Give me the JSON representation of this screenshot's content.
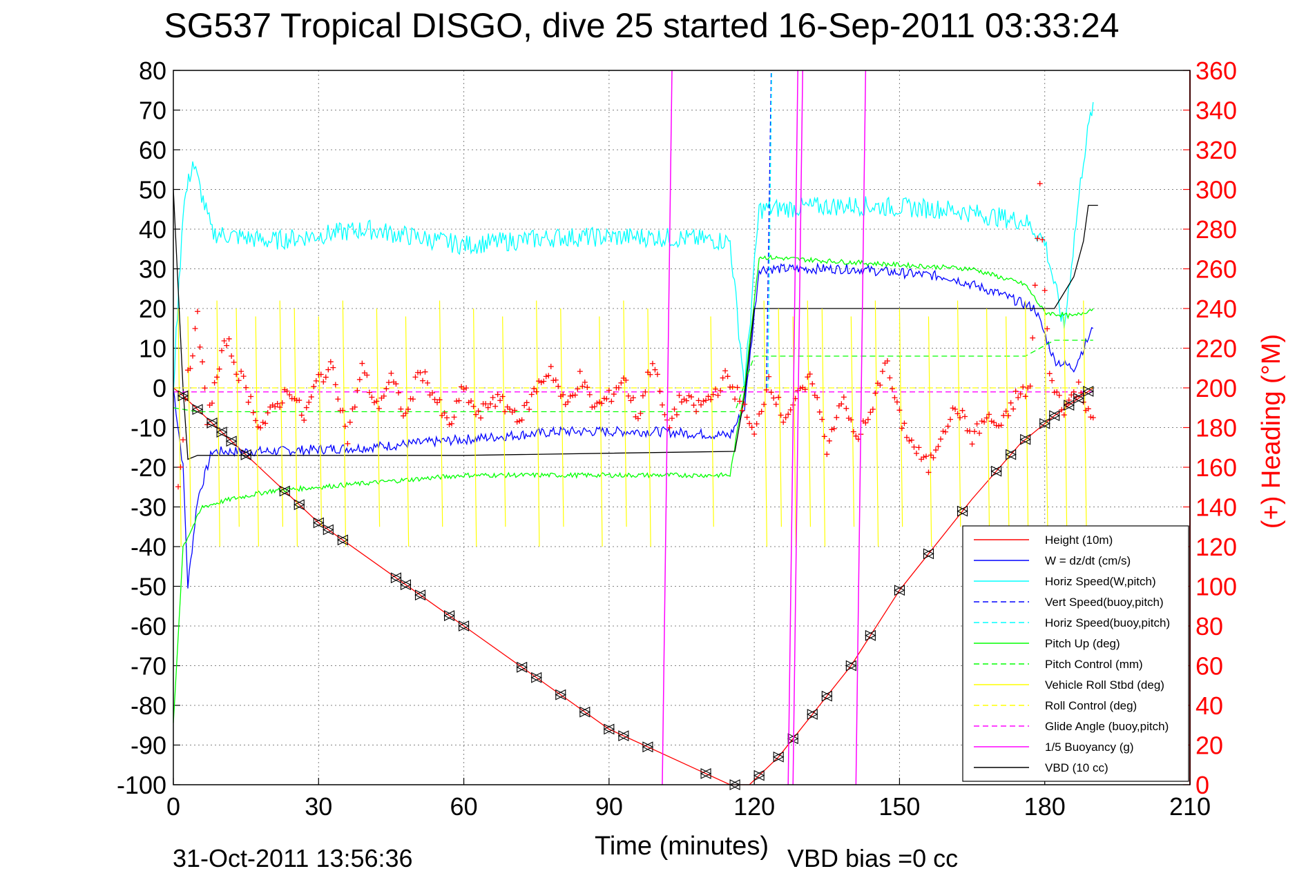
{
  "colors": {
    "height": "#ff0000",
    "w": "#0000ff",
    "horiz_speed": "#00ffff",
    "vert_speed_buoy": "#0000ff",
    "horiz_speed_buoy": "#00ffff",
    "pitch_up": "#00ff00",
    "pitch_control": "#00ff00",
    "roll": "#ffff00",
    "roll_control": "#ffff00",
    "glide_angle": "#ff00ff",
    "buoyancy": "#ff00ff",
    "vbd": "#000000",
    "heading": "#ff0000"
  },
  "chart_data": {
    "type": "line",
    "title": "SG537 Tropical DISGO, dive 25 started 16-Sep-2011 03:33:24",
    "xlabel": "Time (minutes)",
    "ylabel_right": "(+) Heading (°M)",
    "xlim": [
      0,
      210
    ],
    "ylim": [
      -100,
      80
    ],
    "y2lim": [
      0,
      360
    ],
    "xticks": [
      "0",
      "30",
      "60",
      "90",
      "120",
      "150",
      "180",
      "210"
    ],
    "yticks": [
      "80",
      "70",
      "60",
      "50",
      "40",
      "30",
      "20",
      "10",
      "0",
      "-10",
      "-20",
      "-30",
      "-40",
      "-50",
      "-60",
      "-70",
      "-80",
      "-90",
      "-100"
    ],
    "y2ticks": [
      "360",
      "340",
      "320",
      "300",
      "280",
      "260",
      "240",
      "220",
      "200",
      "180",
      "160",
      "140",
      "120",
      "100",
      "80",
      "60",
      "40",
      "20",
      "0"
    ],
    "grid": true,
    "legend_position": "bottom-right",
    "legend": [
      {
        "label": "Height (10m)",
        "style": "solid",
        "color": "#ff0000"
      },
      {
        "label": "W = dz/dt (cm/s)",
        "style": "solid",
        "color": "#0000ff"
      },
      {
        "label": "Horiz Speed(W,pitch)",
        "style": "solid",
        "color": "#00ffff"
      },
      {
        "label": "Vert Speed(buoy,pitch)",
        "style": "dashed",
        "color": "#0000ff"
      },
      {
        "label": "Horiz Speed(buoy,pitch)",
        "style": "dashed",
        "color": "#00ffff"
      },
      {
        "label": "Pitch Up (deg)",
        "style": "solid",
        "color": "#00ff00"
      },
      {
        "label": "Pitch Control (mm)",
        "style": "dashed",
        "color": "#00ff00"
      },
      {
        "label": "Vehicle Roll Stbd (deg)",
        "style": "solid",
        "color": "#ffff00"
      },
      {
        "label": "Roll Control (deg)",
        "style": "dashed",
        "color": "#ffff00"
      },
      {
        "label": "Glide Angle (buoy,pitch)",
        "style": "dashed",
        "color": "#ff00ff"
      },
      {
        "label": "1/5 Buoyancy (g)",
        "style": "solid",
        "color": "#ff00ff"
      },
      {
        "label": "VBD (10 cc)",
        "style": "solid",
        "color": "#000000"
      }
    ],
    "series": [
      {
        "name": "Height (10m)",
        "color": "#ff0000",
        "x": [
          0,
          2,
          30,
          60,
          90,
          115,
          119,
          125,
          140,
          150,
          165,
          175,
          182,
          190
        ],
        "y": [
          0,
          -2,
          -34,
          -60,
          -86,
          -100,
          -100,
          -93,
          -70,
          -51,
          -28,
          -14,
          -7,
          0
        ]
      },
      {
        "name": "W = dz/dt (cm/s)",
        "color": "#0000ff",
        "x": [
          0,
          2,
          3,
          5,
          8,
          12,
          20,
          40,
          60,
          80,
          100,
          115,
          118,
          121,
          140,
          160,
          170,
          178,
          182,
          186,
          190
        ],
        "y": [
          0,
          -20,
          -50,
          -28,
          -16,
          -16,
          -16,
          -15,
          -13,
          -11,
          -11,
          -12,
          -5,
          30,
          30,
          28,
          24,
          20,
          7,
          5,
          15
        ]
      },
      {
        "name": "Horiz Speed(W,pitch)",
        "color": "#00ffff",
        "x": [
          0,
          2,
          4,
          8,
          20,
          40,
          60,
          80,
          100,
          115,
          118,
          121,
          140,
          160,
          176,
          180,
          184,
          188,
          190
        ],
        "y": [
          0,
          45,
          57,
          39,
          37,
          40,
          36,
          38,
          38,
          37,
          0,
          45,
          46,
          45,
          42,
          37,
          15,
          58,
          72
        ]
      },
      {
        "name": "Pitch Up (deg)",
        "color": "#00ff00",
        "x": [
          0,
          2,
          6,
          12,
          20,
          40,
          60,
          80,
          100,
          115,
          118,
          121,
          135,
          165,
          176,
          180,
          186,
          190
        ],
        "y": [
          -85,
          -40,
          -30,
          -28,
          -26,
          -24,
          -22,
          -22,
          -22,
          -22,
          0,
          33,
          32,
          30,
          26,
          19,
          18,
          20
        ]
      },
      {
        "name": "Pitch Control (mm)",
        "color": "#00ff00",
        "dashed": true,
        "x": [
          0,
          5,
          116,
          120,
          176,
          182,
          190
        ],
        "y": [
          -5,
          -6,
          -6,
          8,
          8,
          12,
          12
        ]
      },
      {
        "name": "VBD (10 cc)",
        "color": "#000000",
        "x": [
          0,
          1,
          2,
          3,
          5,
          60,
          116,
          118,
          120,
          172,
          180,
          182,
          184,
          186,
          188,
          189,
          191
        ],
        "y": [
          50,
          25,
          0,
          -18,
          -17,
          -17,
          -16,
          -2,
          20,
          20,
          20,
          20,
          24,
          28,
          37,
          46,
          46
        ]
      },
      {
        "name": "Roll Control (deg)",
        "color": "#ffff00",
        "dashed": true,
        "x": [
          0,
          190
        ],
        "y": [
          0,
          0
        ]
      },
      {
        "name": "Glide Angle (buoy,pitch)",
        "color": "#ff00ff",
        "dashed": true,
        "x": [
          0,
          190
        ],
        "y": [
          -1,
          -1
        ]
      },
      {
        "name": "(+) Heading (°M)",
        "color": "#ff0000",
        "axis": "right",
        "marker": "+",
        "x": [
          1,
          3,
          5,
          7,
          9,
          11,
          13,
          15,
          18,
          21,
          24,
          27,
          30,
          33,
          36,
          39,
          42,
          45,
          48,
          51,
          54,
          57,
          60,
          63,
          66,
          69,
          72,
          75,
          78,
          81,
          84,
          87,
          90,
          93,
          96,
          99,
          102,
          105,
          108,
          111,
          114,
          117,
          120,
          123,
          126,
          129,
          132,
          135,
          138,
          141,
          144,
          147,
          150,
          153,
          156,
          159,
          162,
          165,
          168,
          171,
          174,
          177,
          179,
          181,
          184,
          187,
          190
        ],
        "y": [
          150,
          205,
          235,
          185,
          205,
          225,
          210,
          200,
          180,
          190,
          200,
          185,
          205,
          210,
          175,
          210,
          190,
          205,
          185,
          210,
          195,
          180,
          200,
          185,
          195,
          190,
          185,
          200,
          210,
          190,
          205,
          190,
          195,
          205,
          185,
          215,
          180,
          195,
          190,
          195,
          205,
          195,
          175,
          205,
          185,
          195,
          205,
          170,
          195,
          175,
          185,
          215,
          185,
          170,
          160,
          180,
          190,
          175,
          185,
          180,
          195,
          200,
          300,
          205,
          190,
          200,
          185
        ]
      }
    ],
    "footer_left": "31-Oct-2011 13:56:36",
    "footer_right": "VBD bias =0 cc"
  }
}
